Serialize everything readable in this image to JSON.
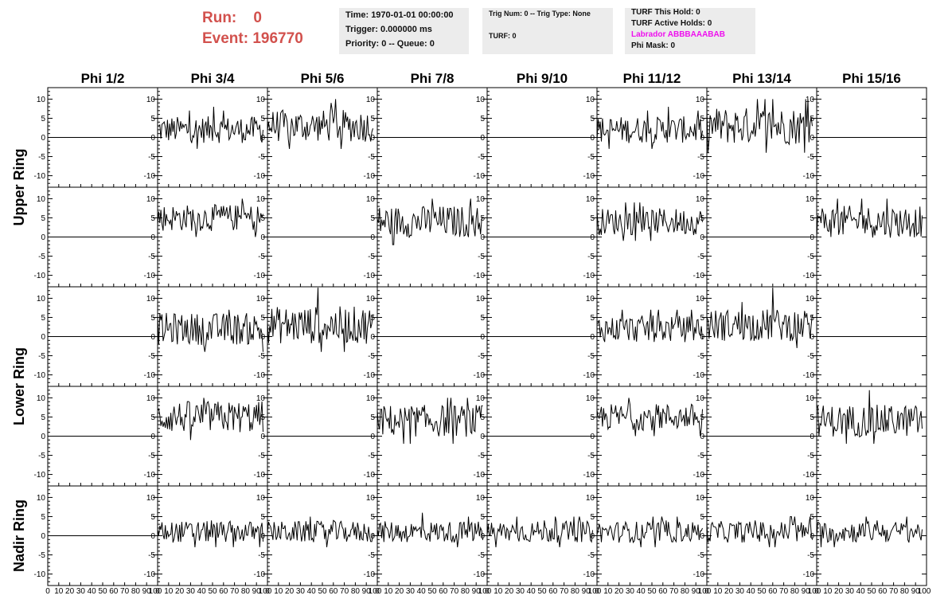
{
  "header": {
    "run_label": "Run:",
    "run_value": "0",
    "event_label": "Event:",
    "event_value": "196770",
    "box1": [
      "Time: 1970-01-01 00:00:00",
      "Trigger: 0.000000 ms",
      "Priority: 0 -- Queue: 0"
    ],
    "box2": [
      "Trig Num: 0 -- Trig Type: None",
      "TURF: 0"
    ],
    "box3": [
      "TURF This Hold: 0",
      "TURF Active Holds: 0",
      "Labrador ABBBAAABAB",
      "Phi Mask: 0"
    ]
  },
  "colors": {
    "run_text": "#d2514d",
    "labrador_text": "#ee10ee",
    "info_bg": "#ececec",
    "trace": "#000000"
  },
  "chart_data": {
    "type": "line",
    "column_titles": [
      "Phi 1/2",
      "Phi 3/4",
      "Phi 5/6",
      "Phi 7/8",
      "Phi 9/10",
      "Phi 11/12",
      "Phi 13/14",
      "Phi 15/16"
    ],
    "row_titles": [
      "Upper Ring",
      "Lower Ring",
      "Nadir Ring"
    ],
    "xlim": [
      0,
      100
    ],
    "ylim": [
      -13,
      13
    ],
    "x_tick_labels": [
      "0",
      "10",
      "20",
      "30",
      "40",
      "50",
      "60",
      "70",
      "80",
      "90",
      "100"
    ],
    "y_tick_labels": [
      "10",
      "5",
      "0",
      "-5",
      "-10"
    ],
    "grid": false,
    "panels": [
      [
        {
          "flat": true
        },
        {
          "mean": 2,
          "spread": 2.5,
          "peak": 8
        },
        {
          "mean": 3,
          "spread": 3,
          "peak": 10
        },
        {
          "flat": true
        },
        {
          "flat": true
        },
        {
          "mean": 2,
          "spread": 2.5,
          "peak": 8
        },
        {
          "mean": 3,
          "spread": 3.5,
          "peak": 10
        },
        {
          "flat": true
        }
      ],
      [
        {
          "flat": true
        },
        {
          "mean": 5,
          "spread": 2.5,
          "peak": 8
        },
        {
          "flat": true
        },
        {
          "mean": 4,
          "spread": 3,
          "peak": 10
        },
        {
          "flat": true
        },
        {
          "mean": 4,
          "spread": 2.5,
          "peak": 8
        },
        {
          "flat": true
        },
        {
          "mean": 4,
          "spread": 3,
          "peak": 10
        }
      ],
      [
        {
          "flat": true
        },
        {
          "mean": 2,
          "spread": 3,
          "peak": 7
        },
        {
          "mean": 3,
          "spread": 3.5,
          "peak": 13
        },
        {
          "flat": true
        },
        {
          "flat": true
        },
        {
          "mean": 2,
          "spread": 2.5,
          "peak": 7
        },
        {
          "mean": 3,
          "spread": 3,
          "peak": 13
        },
        {
          "flat": true
        }
      ],
      [
        {
          "flat": true
        },
        {
          "mean": 5,
          "spread": 3,
          "peak": 10
        },
        {
          "flat": true
        },
        {
          "mean": 4,
          "spread": 3,
          "peak": 10
        },
        {
          "flat": true
        },
        {
          "mean": 5,
          "spread": 2.5,
          "peak": 8
        },
        {
          "flat": true
        },
        {
          "mean": 4,
          "spread": 3,
          "peak": 12
        }
      ],
      [
        {
          "flat": true
        },
        {
          "mean": 1,
          "spread": 2,
          "peak": 4
        },
        {
          "mean": 1,
          "spread": 2,
          "peak": 4
        },
        {
          "mean": 1,
          "spread": 2,
          "peak": 6
        },
        {
          "mean": 1,
          "spread": 2,
          "peak": 4
        },
        {
          "mean": 1,
          "spread": 2,
          "peak": 4
        },
        {
          "mean": 1,
          "spread": 2,
          "peak": 4
        },
        {
          "mean": 1,
          "spread": 2,
          "peak": 4
        }
      ]
    ]
  }
}
